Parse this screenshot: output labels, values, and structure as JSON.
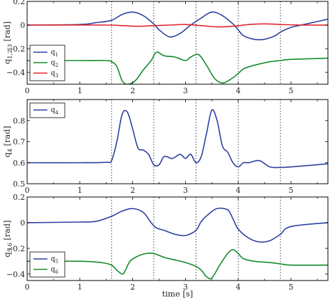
{
  "colors": {
    "blue": "#2b3f9e",
    "green": "#128a2a",
    "red": "#e0252b",
    "frame": "#000000",
    "vline": "#3a3a4a"
  },
  "x_tick_labels": [
    "0",
    "1",
    "2",
    "3",
    "4",
    "5"
  ],
  "xlabel": "time [s]",
  "chart_data": [
    {
      "type": "line",
      "ylabel": "q1,2,3 [rad]",
      "xlim": [
        0,
        5.7
      ],
      "ylim": [
        -0.5,
        0.2
      ],
      "y_ticks": [
        0.2,
        0,
        -0.2,
        -0.4
      ],
      "y_tick_labels": [
        "0.2",
        "0",
        "−0.2",
        "−0.4"
      ],
      "vertical_dotted_lines_x": [
        1.6,
        2.4,
        3.2,
        4.0,
        4.8
      ],
      "legend_position": "bottom-left",
      "series": [
        {
          "name": "q1",
          "color": "#2b3f9e",
          "x": [
            0,
            1.0,
            1.3,
            1.6,
            1.8,
            2.0,
            2.2,
            2.4,
            2.5,
            2.7,
            2.9,
            3.1,
            3.3,
            3.5,
            3.7,
            3.9,
            4.0,
            4.1,
            4.3,
            4.5,
            4.7,
            4.8,
            5.0,
            5.3,
            5.7
          ],
          "y": [
            0.0,
            0.005,
            0.02,
            0.04,
            0.09,
            0.11,
            0.08,
            0.01,
            -0.04,
            -0.1,
            -0.07,
            0.0,
            0.06,
            0.11,
            0.08,
            0.01,
            -0.04,
            -0.09,
            -0.12,
            -0.12,
            -0.09,
            -0.06,
            -0.02,
            0.01,
            0.05
          ]
        },
        {
          "name": "q2",
          "color": "#128a2a",
          "x": [
            0,
            1.0,
            1.5,
            1.6,
            1.7,
            1.8,
            1.9,
            2.05,
            2.2,
            2.35,
            2.45,
            2.6,
            2.8,
            3.0,
            3.1,
            3.25,
            3.4,
            3.55,
            3.7,
            3.85,
            4.0,
            4.1,
            4.3,
            4.6,
            4.8,
            5.0,
            5.7
          ],
          "y": [
            -0.3,
            -0.3,
            -0.3,
            -0.31,
            -0.35,
            -0.47,
            -0.5,
            -0.47,
            -0.38,
            -0.3,
            -0.23,
            -0.26,
            -0.27,
            -0.3,
            -0.27,
            -0.25,
            -0.34,
            -0.45,
            -0.49,
            -0.46,
            -0.41,
            -0.37,
            -0.34,
            -0.31,
            -0.3,
            -0.29,
            -0.28
          ]
        },
        {
          "name": "q3",
          "color": "#e0252b",
          "x": [
            0,
            1.5,
            1.8,
            2.1,
            2.4,
            2.7,
            3.0,
            3.3,
            3.6,
            3.9,
            4.2,
            4.5,
            4.8,
            5.2,
            5.7
          ],
          "y": [
            0.0,
            0.0,
            -0.005,
            -0.01,
            -0.005,
            0.0,
            0.005,
            -0.005,
            -0.015,
            -0.01,
            0.005,
            0.01,
            0.005,
            0.0,
            0.0
          ]
        }
      ]
    },
    {
      "type": "line",
      "ylabel": "q4 [rad]",
      "xlim": [
        0,
        5.7
      ],
      "ylim": [
        0.5,
        0.9
      ],
      "y_ticks": [
        0.5,
        0.6,
        0.7,
        0.8
      ],
      "y_tick_labels": [
        "0.5",
        "0.6",
        "0.7",
        "0.8"
      ],
      "vertical_dotted_lines_x": [
        1.6,
        2.4,
        3.2,
        4.0,
        4.8
      ],
      "legend_position": "top-left",
      "series": [
        {
          "name": "q4",
          "color": "#2b3f9e",
          "x": [
            0,
            1.0,
            1.5,
            1.6,
            1.7,
            1.8,
            1.9,
            2.0,
            2.1,
            2.2,
            2.3,
            2.4,
            2.5,
            2.6,
            2.75,
            2.9,
            3.0,
            3.1,
            3.2,
            3.3,
            3.4,
            3.5,
            3.6,
            3.7,
            3.8,
            3.9,
            4.0,
            4.1,
            4.2,
            4.4,
            4.6,
            4.8,
            5.0,
            5.7
          ],
          "y": [
            0.6,
            0.6,
            0.602,
            0.61,
            0.7,
            0.83,
            0.84,
            0.76,
            0.67,
            0.66,
            0.64,
            0.59,
            0.59,
            0.63,
            0.62,
            0.64,
            0.62,
            0.64,
            0.6,
            0.63,
            0.74,
            0.85,
            0.8,
            0.68,
            0.65,
            0.6,
            0.58,
            0.6,
            0.6,
            0.61,
            0.58,
            0.578,
            0.58,
            0.595
          ]
        }
      ]
    },
    {
      "type": "line",
      "ylabel": "q5,6 [rad]",
      "xlim": [
        0,
        5.7
      ],
      "ylim": [
        -0.45,
        0.2
      ],
      "y_ticks": [
        0.2,
        0,
        -0.2,
        -0.4
      ],
      "y_tick_labels": [
        "0.2",
        "0",
        "−0.2",
        "−0.4"
      ],
      "vertical_dotted_lines_x": [
        1.6,
        2.4,
        3.2,
        4.0,
        4.8
      ],
      "legend_position": "bottom-left",
      "series": [
        {
          "name": "q5",
          "color": "#2b3f9e",
          "x": [
            0,
            1.0,
            1.3,
            1.6,
            1.8,
            2.0,
            2.2,
            2.35,
            2.45,
            2.6,
            2.8,
            3.0,
            3.2,
            3.3,
            3.45,
            3.6,
            3.8,
            3.9,
            4.0,
            4.2,
            4.4,
            4.6,
            4.8,
            5.0,
            5.7
          ],
          "y": [
            0.0,
            0.005,
            0.01,
            0.05,
            0.09,
            0.11,
            0.08,
            0.0,
            -0.04,
            -0.06,
            -0.09,
            -0.1,
            -0.06,
            0.01,
            0.07,
            0.11,
            0.1,
            0.03,
            -0.05,
            -0.12,
            -0.15,
            -0.14,
            -0.09,
            -0.03,
            0.0
          ]
        },
        {
          "name": "q6",
          "color": "#128a2a",
          "x": [
            0,
            1.0,
            1.4,
            1.6,
            1.7,
            1.8,
            1.85,
            1.95,
            2.1,
            2.25,
            2.4,
            2.6,
            2.8,
            3.0,
            3.2,
            3.3,
            3.4,
            3.5,
            3.65,
            3.8,
            3.9,
            4.0,
            4.1,
            4.3,
            4.6,
            4.8,
            5.0,
            5.7
          ],
          "y": [
            -0.3,
            -0.3,
            -0.31,
            -0.33,
            -0.37,
            -0.4,
            -0.38,
            -0.3,
            -0.26,
            -0.24,
            -0.24,
            -0.27,
            -0.29,
            -0.31,
            -0.34,
            -0.37,
            -0.42,
            -0.43,
            -0.33,
            -0.24,
            -0.21,
            -0.24,
            -0.28,
            -0.3,
            -0.31,
            -0.32,
            -0.33,
            -0.33
          ]
        }
      ]
    }
  ]
}
